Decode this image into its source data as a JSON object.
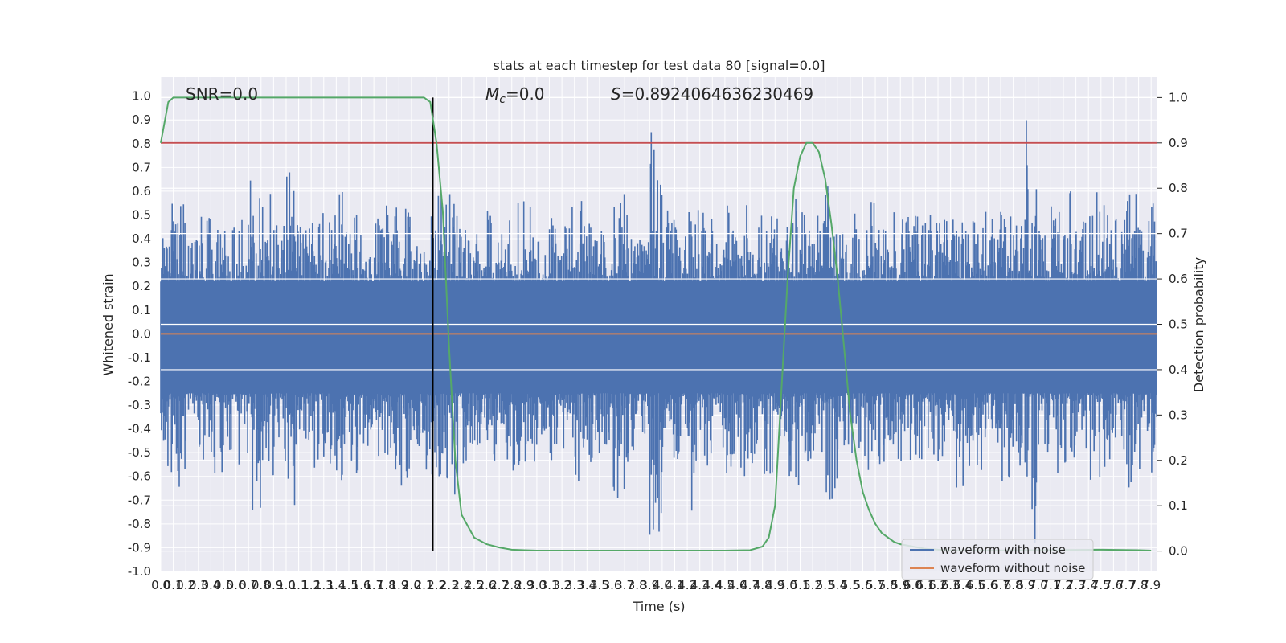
{
  "chart_data": {
    "type": "line",
    "title": "stats at each timestep for test data 80 [signal=0.0]",
    "xlabel": "Time (s)",
    "ylabel": "Whitened strain",
    "y2label": "Detection probability",
    "xlim": [
      0.0,
      7.95
    ],
    "ylim": [
      -1.0,
      1.08
    ],
    "y2lim": [
      -0.045,
      1.045
    ],
    "x_ticks": [
      "0.0",
      "0.1",
      "0.2",
      "0.3",
      "0.4",
      "0.5",
      "0.6",
      "0.7",
      "0.8",
      "0.9",
      "1.0",
      "1.1",
      "1.2",
      "1.3",
      "1.4",
      "1.5",
      "1.6",
      "1.7",
      "1.8",
      "1.9",
      "2.0",
      "2.1",
      "2.2",
      "2.3",
      "2.4",
      "2.5",
      "2.6",
      "2.7",
      "2.8",
      "2.9",
      "3.0",
      "3.1",
      "3.2",
      "3.3",
      "3.4",
      "3.5",
      "3.6",
      "3.7",
      "3.8",
      "3.9",
      "4.0",
      "4.1",
      "4.2",
      "4.3",
      "4.4",
      "4.5",
      "4.6",
      "4.7",
      "4.8",
      "4.9",
      "5.0",
      "5.1",
      "5.2",
      "5.3",
      "5.4",
      "5.5",
      "5.6",
      "5.7",
      "5.8",
      "5.9",
      "6.0",
      "6.1",
      "6.2",
      "6.3",
      "6.4",
      "6.5",
      "6.6",
      "6.7",
      "6.8",
      "6.9",
      "7.0",
      "7.1",
      "7.2",
      "7.3",
      "7.4",
      "7.5",
      "7.6",
      "7.7",
      "7.8",
      "7.9"
    ],
    "y_ticks": [
      "-1.0",
      "-0.9",
      "-0.8",
      "-0.7",
      "-0.6",
      "-0.5",
      "-0.4",
      "-0.3",
      "-0.2",
      "-0.1",
      "0.0",
      "0.1",
      "0.2",
      "0.3",
      "0.4",
      "0.5",
      "0.6",
      "0.7",
      "0.8",
      "0.9",
      "1.0"
    ],
    "y2_ticks": [
      "0.0",
      "0.1",
      "0.2",
      "0.3",
      "0.4",
      "0.5",
      "0.6",
      "0.7",
      "0.8",
      "0.9",
      "1.0"
    ],
    "annotations": {
      "snr": "SNR=0.0",
      "mc_symbol": "M",
      "mc_sub": "c",
      "mc_value": "=0.0",
      "s_symbol": "S",
      "s_value": "=0.8924064636230469"
    },
    "legend": {
      "placement": "lower-right",
      "entries": [
        "waveform with noise",
        "waveform without noise"
      ]
    },
    "threshold_prob": 0.9,
    "marker_time": 2.17,
    "noise_envelope": [
      0.55,
      0.6,
      0.4,
      0.5,
      0.55,
      0.45,
      0.5,
      0.8,
      0.6,
      0.55,
      0.75,
      0.5,
      0.55,
      0.5,
      0.6,
      0.55,
      0.45,
      0.5,
      0.55,
      0.6,
      0.45,
      0.55,
      0.6,
      0.65,
      0.5,
      0.45,
      0.55,
      0.5,
      0.6,
      0.55,
      0.4,
      0.5,
      0.55,
      0.6,
      0.5,
      0.45,
      0.65,
      0.5,
      0.4,
      0.85,
      0.55,
      0.5,
      0.7,
      0.55,
      0.45,
      0.55,
      0.6,
      0.5,
      0.55,
      0.5,
      0.6,
      0.55,
      0.5,
      0.65,
      0.5,
      0.55,
      0.6,
      0.5,
      0.55,
      0.5,
      0.5,
      0.55,
      0.5,
      0.6,
      0.55,
      0.55,
      0.5,
      0.6,
      0.55,
      0.9,
      0.5,
      0.55,
      0.6,
      0.5,
      0.6,
      0.55,
      0.5,
      0.6,
      0.55,
      0.6
    ],
    "noise_series_name": "waveform with noise",
    "clean_series": {
      "name": "waveform without noise",
      "value": 0.0
    },
    "probability_series": {
      "x": [
        0.0,
        0.06,
        0.1,
        0.2,
        0.5,
        1.0,
        1.5,
        2.0,
        2.1,
        2.15,
        2.2,
        2.25,
        2.3,
        2.35,
        2.4,
        2.5,
        2.6,
        2.7,
        2.8,
        2.9,
        3.0,
        3.5,
        4.0,
        4.5,
        4.7,
        4.8,
        4.85,
        4.9,
        4.95,
        5.0,
        5.05,
        5.1,
        5.15,
        5.2,
        5.25,
        5.3,
        5.35,
        5.4,
        5.45,
        5.5,
        5.55,
        5.6,
        5.65,
        5.7,
        5.75,
        5.8,
        5.85,
        5.9,
        6.0,
        6.1,
        6.2,
        6.3,
        6.5,
        7.0,
        7.5,
        7.8,
        7.9
      ],
      "y": [
        0.9,
        0.99,
        1.0,
        1.0,
        1.0,
        1.0,
        1.0,
        1.0,
        1.0,
        0.99,
        0.9,
        0.75,
        0.45,
        0.2,
        0.08,
        0.03,
        0.015,
        0.008,
        0.003,
        0.002,
        0.001,
        0.001,
        0.001,
        0.001,
        0.002,
        0.01,
        0.03,
        0.1,
        0.35,
        0.6,
        0.8,
        0.87,
        0.9,
        0.9,
        0.88,
        0.82,
        0.72,
        0.6,
        0.45,
        0.3,
        0.2,
        0.13,
        0.09,
        0.06,
        0.04,
        0.03,
        0.02,
        0.015,
        0.01,
        0.005,
        0.003,
        0.002,
        0.001,
        0.002,
        0.003,
        0.002,
        0.001
      ]
    },
    "colors": {
      "noise": "#4c72b0",
      "clean": "#dd8452",
      "probability": "#55a868",
      "threshold": "#c44e52",
      "marker": "#000000",
      "plot_bg": "#eaeaf2",
      "grid": "#ffffff"
    },
    "grid": true
  }
}
